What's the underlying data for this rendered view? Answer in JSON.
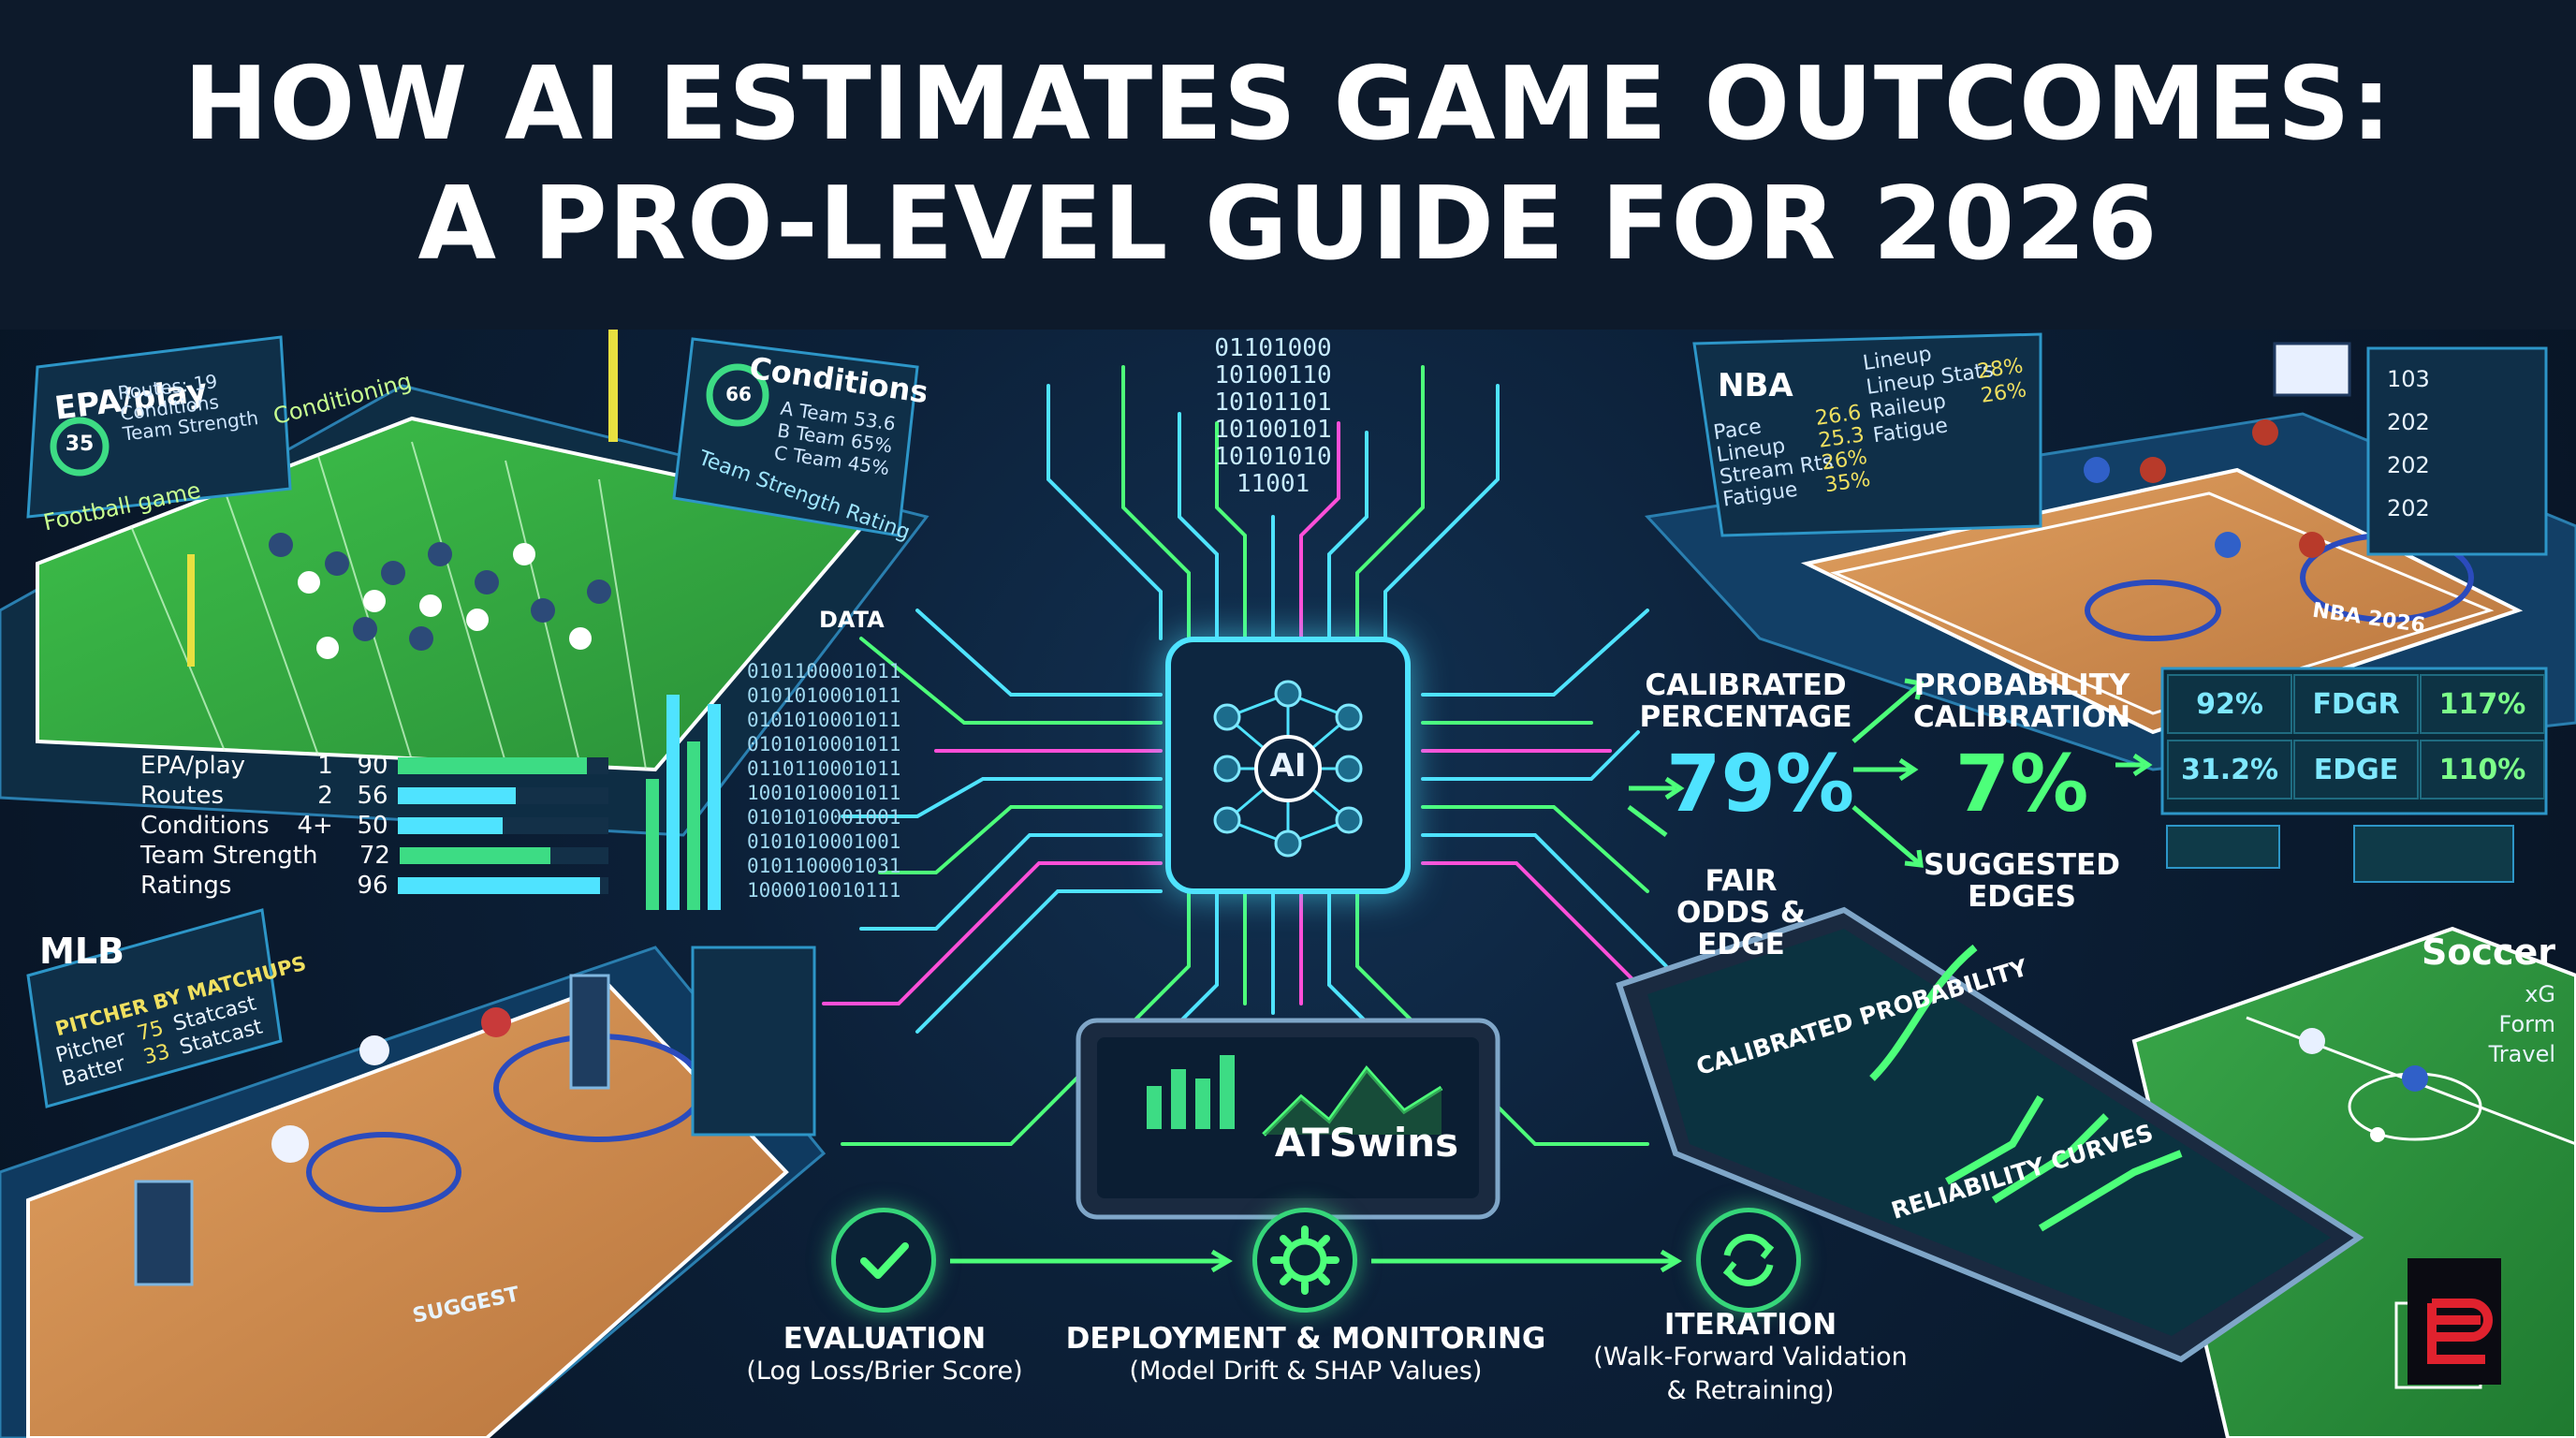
{
  "title": {
    "line1": "HOW AI ESTIMATES GAME OUTCOMES:",
    "line2": "A PRO-LEVEL GUIDE FOR 2026"
  },
  "football": {
    "panel_title": "EPA/play",
    "ring_value": "35",
    "panel_lines": [
      "Routes: 19",
      "Conditions",
      "Team Strength"
    ],
    "conditioning_label": "Conditioning",
    "field_label": "Football game",
    "conditions_title": "Conditions",
    "conditions_ring": "66",
    "conditions_rows": [
      "A Team 53.6",
      "B Team 65%",
      "C Team 45%"
    ],
    "team_strength_label": "Team Strength Rating"
  },
  "data_label": "DATA",
  "stats_table": [
    {
      "name": "EPA/play",
      "a": "1",
      "b": "90",
      "fill": 0.9
    },
    {
      "name": "Routes",
      "a": "2",
      "b": "56",
      "fill": 0.56
    },
    {
      "name": "Conditions",
      "a": "4+",
      "b": "50",
      "fill": 0.5
    },
    {
      "name": "Team Strength",
      "a": "",
      "b": "72",
      "fill": 0.72
    },
    {
      "name": "Ratings",
      "a": "",
      "b": "96",
      "fill": 0.96
    }
  ],
  "binary_left": "0101100001011\n0101010001011\n0101010001011\n0101010001011\n0110110001011\n1001010001011\n0101010001001\n0101010001001\n0101100001031\n1000010010111",
  "binary_top": "01101000\n10100110\n10101101\n10100101\n10101010\n11001",
  "ai_core": "AI",
  "calibrated_percentage": {
    "label": "CALIBRATED PERCENTAGE",
    "value": "79%"
  },
  "probability_calibration": {
    "label": "PROBABILITY CALIBRATION",
    "value": "7%"
  },
  "fair_odds_label": "FAIR ODDS & EDGE",
  "suggested_edges_label": "SUGGESTED EDGES",
  "metrics_grid": [
    [
      "92%",
      "FDGR",
      "117%"
    ],
    [
      "31.2%",
      "EDGE",
      "110%"
    ]
  ],
  "nba": {
    "title": "NBA",
    "rows": [
      {
        "name": "Pace",
        "value": "26.6"
      },
      {
        "name": "Lineup",
        "value": "25.3"
      },
      {
        "name": "Stream Rts",
        "value": "26%"
      },
      {
        "name": "Fatigue",
        "value": "35%"
      }
    ],
    "lineup_rows": [
      {
        "name": "Lineup",
        "value": ""
      },
      {
        "name": "Lineup Stats",
        "value": "28%"
      },
      {
        "name": "Raileup",
        "value": "26%"
      },
      {
        "name": "Fatigue",
        "value": ""
      }
    ],
    "court_label": "NBA 2026",
    "scoreboard": [
      "103",
      "202",
      "202",
      "202"
    ]
  },
  "mlb": {
    "title": "MLB",
    "panel_title": "PITCHER BY MATCHUPS",
    "rows": [
      {
        "name": "Pitcher",
        "value": "75",
        "stat": "Statcast"
      },
      {
        "name": "Batter",
        "value": "33",
        "stat": "Statcast"
      }
    ],
    "suggest_label": "SUGGEST"
  },
  "tablet_brand": "ATSwins",
  "tablet2": {
    "top": "CALIBRATED PROBABILITY",
    "bottom": "RELIABILITY CURVES"
  },
  "soccer": {
    "title": "Soccer",
    "items": [
      "xG",
      "Form",
      "Travel"
    ]
  },
  "steps": [
    {
      "title": "EVALUATION",
      "sub": "(Log Loss/Brier Score)"
    },
    {
      "title": "DEPLOYMENT & MONITORING",
      "sub": "(Model Drift & SHAP Values)"
    },
    {
      "title": "ITERATION",
      "sub": "(Walk-Forward Validation\n& Retraining)"
    }
  ],
  "colors": {
    "cyan": "#4fe3ff",
    "green": "#4dff7a",
    "magenta": "#ff4fd8",
    "background": "#0a1628"
  }
}
